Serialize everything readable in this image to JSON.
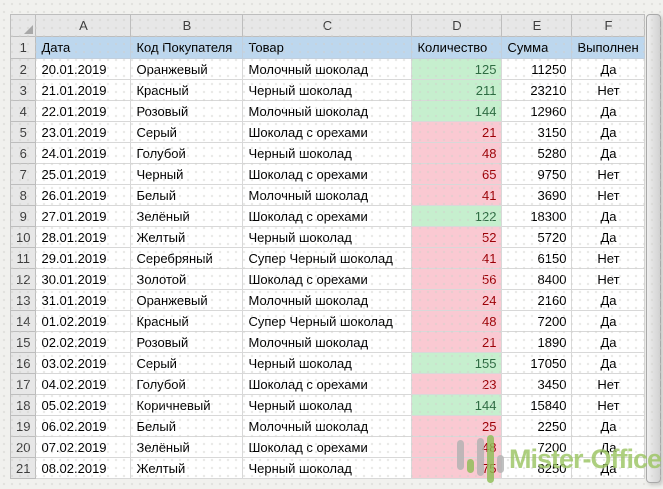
{
  "sheet": {
    "column_letters": [
      "A",
      "B",
      "C",
      "D",
      "E",
      "F"
    ],
    "header_row_number": "1",
    "headers": [
      "Дата",
      "Код Покупателя",
      "Товар",
      "Количество",
      "Сумма",
      "Выполнен"
    ],
    "rows": [
      {
        "n": "2",
        "cells": [
          "20.01.2019",
          "Оранжевый",
          "Молочный шоколад",
          "125",
          "11250",
          "Да"
        ],
        "qty_status": "good"
      },
      {
        "n": "3",
        "cells": [
          "21.01.2019",
          "Красный",
          "Черный шоколад",
          "211",
          "23210",
          "Нет"
        ],
        "qty_status": "good"
      },
      {
        "n": "4",
        "cells": [
          "22.01.2019",
          "Розовый",
          "Молочный шоколад",
          "144",
          "12960",
          "Да"
        ],
        "qty_status": "good"
      },
      {
        "n": "5",
        "cells": [
          "23.01.2019",
          "Серый",
          "Шоколад с орехами",
          "21",
          "3150",
          "Да"
        ],
        "qty_status": "bad"
      },
      {
        "n": "6",
        "cells": [
          "24.01.2019",
          "Голубой",
          "Черный шоколад",
          "48",
          "5280",
          "Да"
        ],
        "qty_status": "bad"
      },
      {
        "n": "7",
        "cells": [
          "25.01.2019",
          "Черный",
          "Шоколад с орехами",
          "65",
          "9750",
          "Нет"
        ],
        "qty_status": "bad"
      },
      {
        "n": "8",
        "cells": [
          "26.01.2019",
          "Белый",
          "Молочный шоколад",
          "41",
          "3690",
          "Нет"
        ],
        "qty_status": "bad"
      },
      {
        "n": "9",
        "cells": [
          "27.01.2019",
          "Зелёный",
          "Шоколад с орехами",
          "122",
          "18300",
          "Да"
        ],
        "qty_status": "good"
      },
      {
        "n": "10",
        "cells": [
          "28.01.2019",
          "Желтый",
          "Черный шоколад",
          "52",
          "5720",
          "Да"
        ],
        "qty_status": "bad"
      },
      {
        "n": "11",
        "cells": [
          "29.01.2019",
          "Серебряный",
          "Супер Черный шоколад",
          "41",
          "6150",
          "Нет"
        ],
        "qty_status": "bad"
      },
      {
        "n": "12",
        "cells": [
          "30.01.2019",
          "Золотой",
          "Шоколад с орехами",
          "56",
          "8400",
          "Нет"
        ],
        "qty_status": "bad"
      },
      {
        "n": "13",
        "cells": [
          "31.01.2019",
          "Оранжевый",
          "Молочный шоколад",
          "24",
          "2160",
          "Да"
        ],
        "qty_status": "bad"
      },
      {
        "n": "14",
        "cells": [
          "01.02.2019",
          "Красный",
          "Супер Черный шоколад",
          "48",
          "7200",
          "Да"
        ],
        "qty_status": "bad"
      },
      {
        "n": "15",
        "cells": [
          "02.02.2019",
          "Розовый",
          "Молочный шоколад",
          "21",
          "1890",
          "Да"
        ],
        "qty_status": "bad"
      },
      {
        "n": "16",
        "cells": [
          "03.02.2019",
          "Серый",
          "Черный шоколад",
          "155",
          "17050",
          "Да"
        ],
        "qty_status": "good"
      },
      {
        "n": "17",
        "cells": [
          "04.02.2019",
          "Голубой",
          "Шоколад с орехами",
          "23",
          "3450",
          "Нет"
        ],
        "qty_status": "bad"
      },
      {
        "n": "18",
        "cells": [
          "05.02.2019",
          "Коричневый",
          "Черный шоколад",
          "144",
          "15840",
          "Нет"
        ],
        "qty_status": "good"
      },
      {
        "n": "19",
        "cells": [
          "06.02.2019",
          "Белый",
          "Молочный шоколад",
          "25",
          "2250",
          "Да"
        ],
        "qty_status": "bad"
      },
      {
        "n": "20",
        "cells": [
          "07.02.2019",
          "Зелёный",
          "Шоколад с орехами",
          "48",
          "7200",
          "Да"
        ],
        "qty_status": "bad"
      },
      {
        "n": "21",
        "cells": [
          "08.02.2019",
          "Желтый",
          "Черный шоколад",
          "75",
          "8250",
          "Да"
        ],
        "qty_status": "bad"
      }
    ]
  },
  "colors": {
    "header_fill": "#bdd7ee",
    "good_fill": "#c6efce",
    "good_text": "#2e6b42",
    "bad_fill": "#fac9d2",
    "bad_text": "#9c0006"
  },
  "watermark": {
    "text": "Mister-Office"
  }
}
